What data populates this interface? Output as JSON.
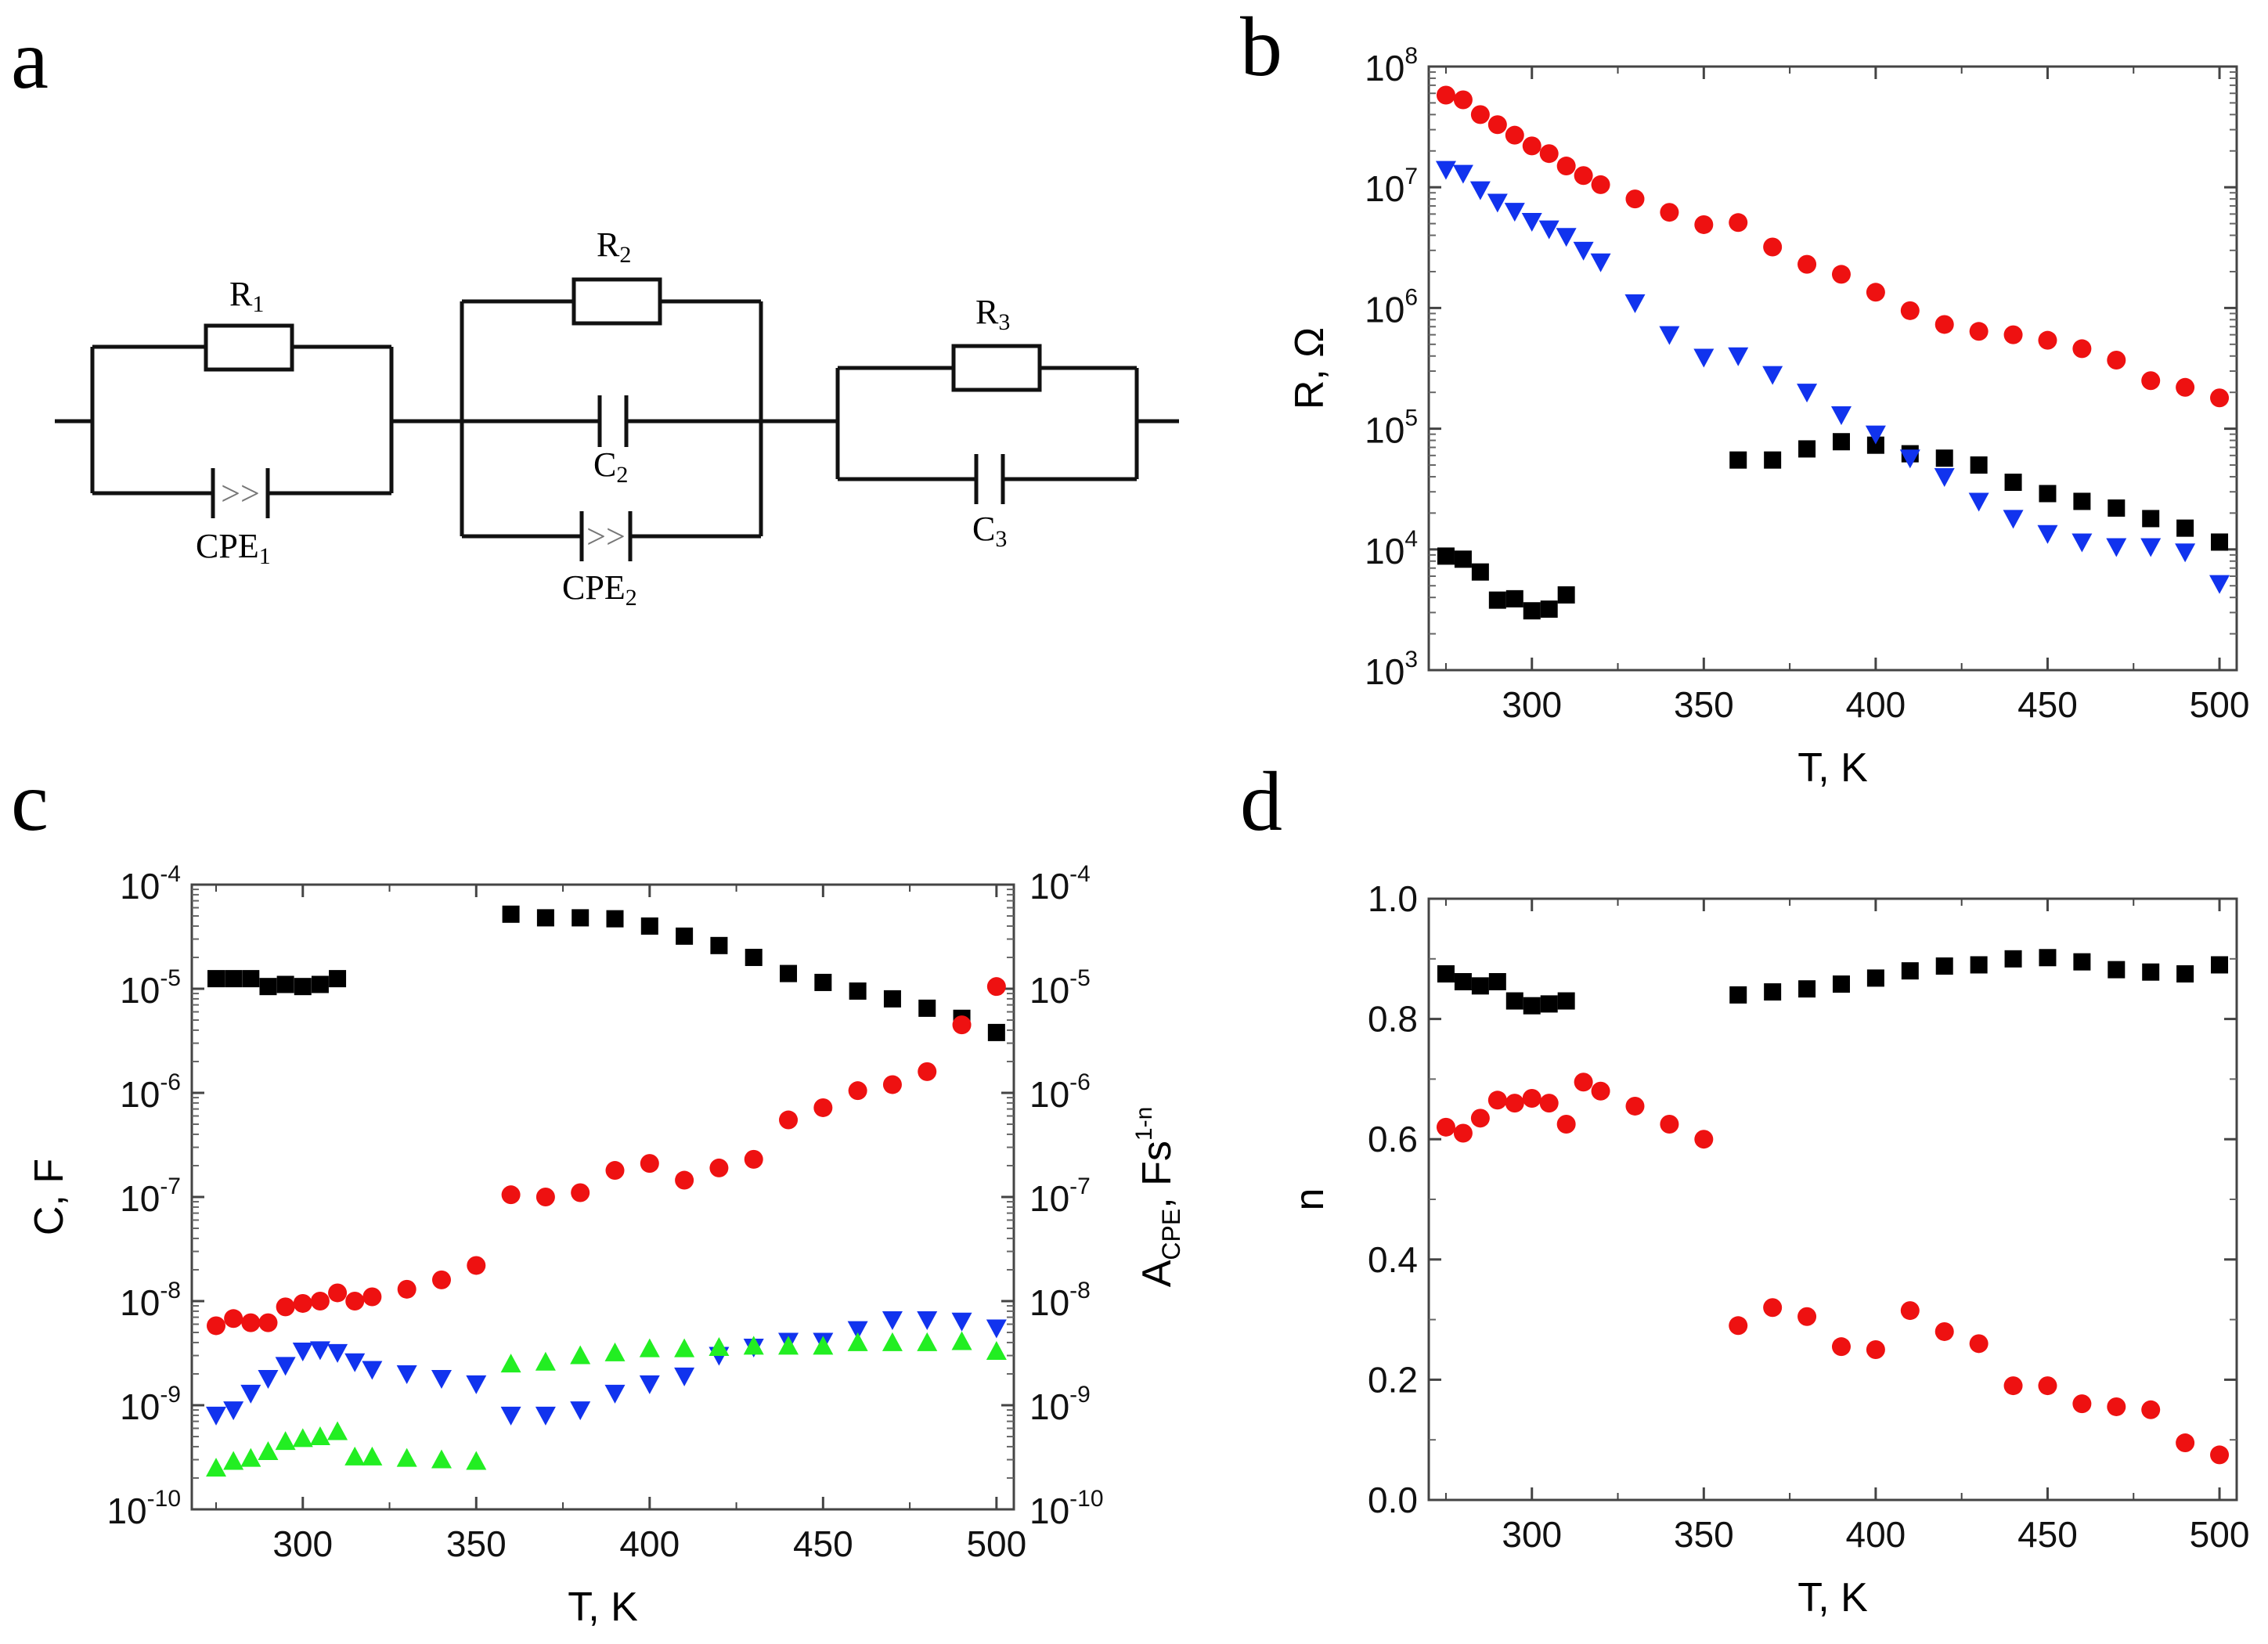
{
  "panels": {
    "a": {
      "letter": "a"
    },
    "b": {
      "letter": "b"
    },
    "c": {
      "letter": "c"
    },
    "d": {
      "letter": "d"
    }
  },
  "circuit": {
    "r1": "R",
    "r1_sub": "1",
    "cpe1": "CPE",
    "cpe1_sub": "1",
    "r2": "R",
    "r2_sub": "2",
    "c2": "C",
    "c2_sub": "2",
    "cpe2": "CPE",
    "cpe2_sub": "2",
    "r3": "R",
    "r3_sub": "3",
    "c3": "C",
    "c3_sub": "3",
    "cpe_symbol": ">>"
  },
  "colors": {
    "black": "#000000",
    "red": "#ee1111",
    "blue": "#1133ee",
    "green": "#22ee22"
  },
  "chart_data": [
    {
      "id": "b",
      "type": "scatter",
      "xlabel": "T, K",
      "ylabel": "R, Ω",
      "xlim": [
        270,
        505
      ],
      "ylim_log10": [
        3,
        8
      ],
      "yscale": "log",
      "xticks": [
        300,
        350,
        400,
        450,
        500
      ],
      "yticks": [
        {
          "base": "10",
          "exp": "3"
        },
        {
          "base": "10",
          "exp": "4"
        },
        {
          "base": "10",
          "exp": "5"
        },
        {
          "base": "10",
          "exp": "6"
        },
        {
          "base": "10",
          "exp": "7"
        },
        {
          "base": "10",
          "exp": "8"
        }
      ],
      "series": [
        {
          "name": "squares",
          "marker": "square",
          "color": "black",
          "x": [
            275,
            280,
            285,
            290,
            295,
            300,
            305,
            310,
            360,
            370,
            380,
            390,
            400,
            410,
            420,
            430,
            440,
            450,
            460,
            470,
            480,
            490,
            500
          ],
          "y": [
            8800,
            8300,
            6500,
            3800,
            3900,
            3100,
            3200,
            4200,
            55000,
            55000,
            68000,
            78000,
            73000,
            62000,
            57000,
            50000,
            36000,
            29000,
            25000,
            22000,
            18000,
            15000,
            11500
          ]
        },
        {
          "name": "circles",
          "marker": "circle",
          "color": "red",
          "x": [
            275,
            280,
            285,
            290,
            295,
            300,
            305,
            310,
            315,
            320,
            330,
            340,
            350,
            360,
            370,
            380,
            390,
            400,
            410,
            420,
            430,
            440,
            450,
            460,
            470,
            480,
            490,
            500
          ],
          "y": [
            58000000,
            53000000,
            40000000,
            33000000,
            27000000,
            22000000,
            19000000,
            15000000,
            12500000,
            10500000,
            8000000,
            6200000,
            4900000,
            5100000,
            3200000,
            2300000,
            1900000,
            1350000,
            950000,
            730000,
            640000,
            600000,
            540000,
            460000,
            370000,
            250000,
            220000,
            180000
          ]
        },
        {
          "name": "triangles-down",
          "marker": "tri-down",
          "color": "blue",
          "x": [
            275,
            280,
            285,
            290,
            295,
            300,
            305,
            310,
            315,
            320,
            330,
            340,
            350,
            360,
            370,
            380,
            390,
            400,
            410,
            420,
            430,
            440,
            450,
            460,
            470,
            480,
            490,
            500
          ],
          "y": [
            14000000,
            13000000,
            9500000,
            7500000,
            6300000,
            5200000,
            4500000,
            3900000,
            3000000,
            2400000,
            1100000,
            600000,
            390000,
            400000,
            280000,
            200000,
            130000,
            90000,
            57000,
            40000,
            25000,
            18000,
            13500,
            11500,
            10500,
            10500,
            9500,
            5200
          ]
        }
      ]
    },
    {
      "id": "c",
      "type": "scatter",
      "xlabel": "T, K",
      "ylabel": "C, F",
      "ylabel_right": {
        "main": "A",
        "sub": "CPE",
        "rest": ", Fs",
        "exp": "1-n"
      },
      "xlim": [
        268,
        505
      ],
      "ylim_log10": [
        -10,
        -4
      ],
      "yscale": "log",
      "xticks": [
        300,
        350,
        400,
        450,
        500
      ],
      "yticks": [
        {
          "base": "10",
          "exp": "-10"
        },
        {
          "base": "10",
          "exp": "-9"
        },
        {
          "base": "10",
          "exp": "-8"
        },
        {
          "base": "10",
          "exp": "-7"
        },
        {
          "base": "10",
          "exp": "-6"
        },
        {
          "base": "10",
          "exp": "-5"
        },
        {
          "base": "10",
          "exp": "-4"
        }
      ],
      "series": [
        {
          "name": "squares",
          "marker": "square",
          "color": "black",
          "x": [
            275,
            280,
            285,
            290,
            295,
            300,
            305,
            310,
            360,
            370,
            380,
            390,
            400,
            410,
            420,
            430,
            440,
            450,
            460,
            470,
            480,
            490,
            500
          ],
          "y": [
            1.25e-05,
            1.25e-05,
            1.25e-05,
            1.05e-05,
            1.1e-05,
            1.05e-05,
            1.1e-05,
            1.25e-05,
            5.2e-05,
            4.8e-05,
            4.8e-05,
            4.7e-05,
            4e-05,
            3.2e-05,
            2.6e-05,
            2e-05,
            1.4e-05,
            1.15e-05,
            9.5e-06,
            8e-06,
            6.5e-06,
            5.2e-06,
            3.8e-06
          ]
        },
        {
          "name": "circles",
          "marker": "circle",
          "color": "red",
          "x": [
            275,
            280,
            285,
            290,
            295,
            300,
            305,
            310,
            315,
            320,
            330,
            340,
            350,
            360,
            370,
            380,
            390,
            400,
            410,
            420,
            430,
            440,
            450,
            460,
            470,
            480,
            490,
            500
          ],
          "y": [
            5.8e-09,
            6.8e-09,
            6.2e-09,
            6.2e-09,
            8.8e-09,
            9.5e-09,
            1e-08,
            1.2e-08,
            1e-08,
            1.1e-08,
            1.3e-08,
            1.6e-08,
            2.2e-08,
            1.05e-07,
            1e-07,
            1.1e-07,
            1.8e-07,
            2.1e-07,
            1.45e-07,
            1.9e-07,
            2.3e-07,
            5.5e-07,
            7.2e-07,
            1.05e-06,
            1.2e-06,
            1.6e-06,
            4.5e-06,
            1.05e-05
          ]
        },
        {
          "name": "triangles-down",
          "marker": "tri-down",
          "color": "blue",
          "x": [
            275,
            280,
            285,
            290,
            295,
            300,
            305,
            310,
            315,
            320,
            330,
            340,
            350,
            360,
            370,
            380,
            390,
            400,
            410,
            420,
            430,
            440,
            450,
            460,
            470,
            480,
            490,
            500
          ],
          "y": [
            8e-10,
            9e-10,
            1.3e-09,
            1.8e-09,
            2.4e-09,
            3.3e-09,
            3.4e-09,
            3.2e-09,
            2.6e-09,
            2.2e-09,
            2e-09,
            1.8e-09,
            1.6e-09,
            8e-10,
            8e-10,
            9e-10,
            1.3e-09,
            1.6e-09,
            1.9e-09,
            3e-09,
            3.6e-09,
            4.1e-09,
            4.1e-09,
            5.3e-09,
            6.6e-09,
            6.6e-09,
            6.4e-09,
            5.5e-09
          ]
        },
        {
          "name": "triangles-up",
          "marker": "tri-up",
          "color": "green",
          "x": [
            275,
            280,
            285,
            290,
            295,
            300,
            305,
            310,
            315,
            320,
            330,
            340,
            350,
            360,
            370,
            380,
            390,
            400,
            410,
            420,
            430,
            440,
            450,
            460,
            470,
            480,
            490,
            500
          ],
          "y": [
            2.5e-10,
            2.9e-10,
            3.1e-10,
            3.6e-10,
            4.5e-10,
            4.8e-10,
            5e-10,
            5.6e-10,
            3.2e-10,
            3.2e-10,
            3.1e-10,
            3e-10,
            2.9e-10,
            2.5e-09,
            2.6e-09,
            3e-09,
            3.2e-09,
            3.5e-09,
            3.5e-09,
            3.6e-09,
            3.7e-09,
            3.7e-09,
            3.7e-09,
            4e-09,
            4e-09,
            4e-09,
            4.1e-09,
            3.3e-09
          ]
        }
      ]
    },
    {
      "id": "d",
      "type": "scatter",
      "xlabel": "T, K",
      "ylabel": "n",
      "xlim": [
        270,
        505
      ],
      "ylim": [
        0.0,
        1.0
      ],
      "yscale": "linear",
      "xticks": [
        300,
        350,
        400,
        450,
        500
      ],
      "yticks": [
        "0.0",
        "0.2",
        "0.4",
        "0.6",
        "0.8",
        "1.0"
      ],
      "series": [
        {
          "name": "squares",
          "marker": "square",
          "color": "black",
          "x": [
            275,
            280,
            285,
            290,
            295,
            300,
            305,
            310,
            360,
            370,
            380,
            390,
            400,
            410,
            420,
            430,
            440,
            450,
            460,
            470,
            480,
            490,
            500
          ],
          "y": [
            0.875,
            0.862,
            0.855,
            0.862,
            0.83,
            0.822,
            0.825,
            0.83,
            0.84,
            0.845,
            0.85,
            0.858,
            0.868,
            0.88,
            0.888,
            0.89,
            0.9,
            0.902,
            0.895,
            0.882,
            0.878,
            0.875,
            0.89
          ]
        },
        {
          "name": "circles",
          "marker": "circle",
          "color": "red",
          "x": [
            275,
            280,
            285,
            290,
            295,
            300,
            305,
            310,
            315,
            320,
            330,
            340,
            350,
            360,
            370,
            380,
            390,
            400,
            410,
            420,
            430,
            440,
            450,
            460,
            470,
            480,
            490,
            500
          ],
          "y": [
            0.62,
            0.61,
            0.635,
            0.665,
            0.66,
            0.668,
            0.66,
            0.625,
            0.695,
            0.68,
            0.655,
            0.625,
            0.6,
            0.29,
            0.32,
            0.305,
            0.255,
            0.25,
            0.315,
            0.28,
            0.26,
            0.19,
            0.19,
            0.16,
            0.155,
            0.15,
            0.095,
            0.075
          ]
        }
      ]
    }
  ]
}
